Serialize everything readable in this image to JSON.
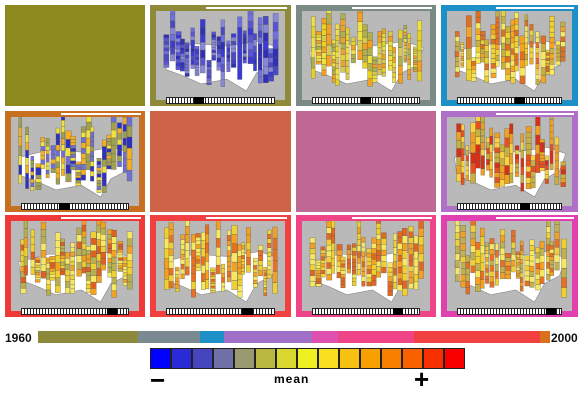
{
  "panels": [
    {
      "id": "p1",
      "border": "#8c8a1e",
      "map": false
    },
    {
      "id": "p2",
      "border": "#8f8a3a",
      "map": true,
      "palette": [
        "#3b3ad6",
        "#5a54d4",
        "#2f2fb8",
        "#6f6fe0",
        "#4a4ac8",
        "#8888d8"
      ],
      "thumb": 0.25
    },
    {
      "id": "p3",
      "border": "#7a8a84",
      "map": true,
      "palette": [
        "#f0e040",
        "#e8d420",
        "#d8c850",
        "#f4a020",
        "#b0b04a"
      ],
      "thumb": 0.45
    },
    {
      "id": "p4",
      "border": "#1e90c8",
      "map": true,
      "palette": [
        "#f0d030",
        "#f4a420",
        "#e07020",
        "#f8e860",
        "#c8b040"
      ],
      "thumb": 0.55
    },
    {
      "id": "p5",
      "border": "#c86f20",
      "map": true,
      "palette": [
        "#f0e040",
        "#3030c0",
        "#a0a050",
        "#f4b020",
        "#7070d0"
      ],
      "thumb": 0.35
    },
    {
      "id": "p6",
      "border": "#cd6347",
      "map": false
    },
    {
      "id": "p7",
      "border": "#c06894",
      "map": false
    },
    {
      "id": "p8",
      "border": "#b070c8",
      "map": true,
      "palette": [
        "#e85020",
        "#f0a020",
        "#f8d040",
        "#d83018",
        "#c8b040"
      ],
      "thumb": 0.6
    },
    {
      "id": "p9",
      "border": "#f03838",
      "map": true,
      "palette": [
        "#f4a020",
        "#f0d030",
        "#e06020",
        "#f8e860",
        "#b8b050"
      ],
      "thumb": 0.8
    },
    {
      "id": "p10",
      "border": "#f04040",
      "map": true,
      "palette": [
        "#f0d030",
        "#f4a020",
        "#e87020",
        "#f8e860"
      ],
      "thumb": 0.7
    },
    {
      "id": "p11",
      "border": "#f04488",
      "map": true,
      "palette": [
        "#f0d030",
        "#f4a020",
        "#e06820",
        "#f8e860"
      ],
      "thumb": 0.75
    },
    {
      "id": "p12",
      "border": "#e040b0",
      "map": true,
      "palette": [
        "#f0d030",
        "#f4a020",
        "#e87020",
        "#f8e860",
        "#c0b050"
      ],
      "thumb": 0.85
    }
  ],
  "timeline": {
    "start_year": "1960",
    "end_year": "2000",
    "segments": [
      {
        "color": "#8c8a3a",
        "weight": 100
      },
      {
        "color": "#7a8a90",
        "weight": 62
      },
      {
        "color": "#1e90c8",
        "weight": 24
      },
      {
        "color": "#a070c8",
        "weight": 88
      },
      {
        "color": "#e050b0",
        "weight": 26
      },
      {
        "color": "#f04488",
        "weight": 76
      },
      {
        "color": "#f04040",
        "weight": 126
      },
      {
        "color": "#d8701e",
        "weight": 10
      }
    ]
  },
  "legend": {
    "label": "mean",
    "minus": "−",
    "plus": "+",
    "colors": [
      "#0000ff",
      "#2a2ad8",
      "#4545c0",
      "#7070a8",
      "#9a9a70",
      "#b8b840",
      "#d8d830",
      "#f0f020",
      "#f8e020",
      "#f8c010",
      "#f8a000",
      "#f88000",
      "#f86000",
      "#f83000",
      "#f80000"
    ]
  }
}
